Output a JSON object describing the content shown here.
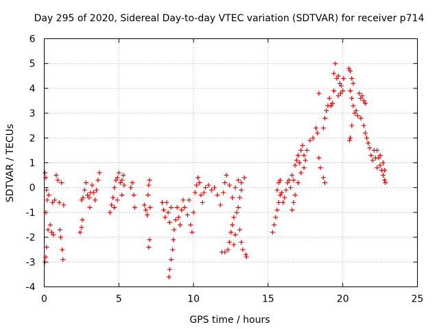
{
  "chart_data": {
    "type": "scatter",
    "title": "Day 295 of 2020, Sidereal Day-to-day VTEC variation (SDTVAR) for receiver p714",
    "xlabel": "GPS time / hours",
    "ylabel": "SDTVAR / TECUs",
    "xlim": [
      0,
      25
    ],
    "ylim": [
      -4,
      6
    ],
    "xticks": [
      "0",
      "5",
      "10",
      "15",
      "20",
      "25"
    ],
    "yticks": [
      "-4",
      "-3",
      "-2",
      "-1",
      "0",
      "1",
      "2",
      "3",
      "4",
      "5",
      "6"
    ],
    "grid": true,
    "marker": "plus",
    "color": "#ff0000",
    "series": [
      {
        "name": "SDTVAR",
        "points": [
          [
            0.05,
            0.6
          ],
          [
            0.1,
            0.4
          ],
          [
            0.15,
            -0.1
          ],
          [
            0.2,
            -0.5
          ],
          [
            0.1,
            -1.0
          ],
          [
            0.15,
            -2.4
          ],
          [
            0.05,
            -3.0
          ],
          [
            0.1,
            -2.8
          ],
          [
            0.25,
            -1.7
          ],
          [
            0.3,
            -0.3
          ],
          [
            0.4,
            -1.5
          ],
          [
            0.5,
            -1.8
          ],
          [
            0.6,
            -1.9
          ],
          [
            0.55,
            -0.6
          ],
          [
            0.7,
            -0.5
          ],
          [
            0.8,
            0.5
          ],
          [
            0.9,
            0.3
          ],
          [
            1.0,
            -0.6
          ],
          [
            1.05,
            -1.7
          ],
          [
            1.1,
            -2.0
          ],
          [
            1.2,
            -2.5
          ],
          [
            1.25,
            -2.9
          ],
          [
            1.15,
            0.2
          ],
          [
            1.3,
            -0.7
          ],
          [
            2.4,
            -1.8
          ],
          [
            2.5,
            -1.6
          ],
          [
            2.55,
            -1.3
          ],
          [
            2.5,
            -0.5
          ],
          [
            2.6,
            -0.4
          ],
          [
            2.7,
            -0.1
          ],
          [
            2.8,
            0.2
          ],
          [
            2.9,
            -0.3
          ],
          [
            3.0,
            -0.4
          ],
          [
            3.05,
            -0.8
          ],
          [
            3.1,
            -0.2
          ],
          [
            3.2,
            0.1
          ],
          [
            3.3,
            -0.2
          ],
          [
            3.4,
            -0.5
          ],
          [
            3.5,
            -0.1
          ],
          [
            3.6,
            0.3
          ],
          [
            3.7,
            0.6
          ],
          [
            4.4,
            -1.0
          ],
          [
            4.5,
            -0.7
          ],
          [
            4.6,
            -0.4
          ],
          [
            4.7,
            0.0
          ],
          [
            4.8,
            0.3
          ],
          [
            4.9,
            0.4
          ],
          [
            5.0,
            0.6
          ],
          [
            5.1,
            0.2
          ],
          [
            5.2,
            0.3
          ],
          [
            5.3,
            0.5
          ],
          [
            5.35,
            0.1
          ],
          [
            5.2,
            -0.3
          ],
          [
            4.9,
            -0.5
          ],
          [
            4.7,
            -0.8
          ],
          [
            5.8,
            0.0
          ],
          [
            5.9,
            0.2
          ],
          [
            6.0,
            -0.3
          ],
          [
            6.05,
            -0.8
          ],
          [
            6.7,
            -0.7
          ],
          [
            6.8,
            -0.9
          ],
          [
            6.9,
            -1.1
          ],
          [
            6.95,
            -0.3
          ],
          [
            7.0,
            0.1
          ],
          [
            7.05,
            0.3
          ],
          [
            7.1,
            -0.8
          ],
          [
            7.0,
            -2.4
          ],
          [
            7.05,
            -2.1
          ],
          [
            7.9,
            -0.6
          ],
          [
            8.0,
            -0.9
          ],
          [
            8.1,
            -1.2
          ],
          [
            8.2,
            -0.6
          ],
          [
            8.3,
            -1.0
          ],
          [
            8.4,
            -1.4
          ],
          [
            8.5,
            -0.8
          ],
          [
            8.35,
            -3.6
          ],
          [
            8.4,
            -3.3
          ],
          [
            8.5,
            -2.9
          ],
          [
            8.6,
            -2.5
          ],
          [
            8.65,
            -2.1
          ],
          [
            8.7,
            -1.7
          ],
          [
            8.8,
            -1.3
          ],
          [
            8.9,
            -0.8
          ],
          [
            9.0,
            -1.2
          ],
          [
            9.1,
            -1.5
          ],
          [
            9.2,
            -0.9
          ],
          [
            9.3,
            -0.5
          ],
          [
            9.4,
            -0.8
          ],
          [
            9.6,
            -1.1
          ],
          [
            9.7,
            -0.5
          ],
          [
            9.8,
            -1.5
          ],
          [
            9.9,
            -1.8
          ],
          [
            10.0,
            -1.0
          ],
          [
            10.1,
            -0.2
          ],
          [
            10.2,
            0.1
          ],
          [
            10.3,
            0.4
          ],
          [
            10.4,
            0.2
          ],
          [
            10.5,
            -0.3
          ],
          [
            10.6,
            -0.6
          ],
          [
            10.7,
            -0.2
          ],
          [
            10.8,
            0.0
          ],
          [
            11.0,
            0.1
          ],
          [
            11.2,
            -0.1
          ],
          [
            11.4,
            0.0
          ],
          [
            11.6,
            -0.3
          ],
          [
            11.8,
            -0.7
          ],
          [
            12.0,
            -0.2
          ],
          [
            12.1,
            0.2
          ],
          [
            12.2,
            0.5
          ],
          [
            12.4,
            0.1
          ],
          [
            12.6,
            -0.4
          ],
          [
            12.8,
            0.0
          ],
          [
            13.0,
            0.3
          ],
          [
            13.2,
            0.2
          ],
          [
            13.4,
            0.4
          ],
          [
            11.9,
            -2.6
          ],
          [
            12.1,
            -2.6
          ],
          [
            12.3,
            -2.5
          ],
          [
            12.4,
            -2.2
          ],
          [
            12.5,
            -1.8
          ],
          [
            12.6,
            -1.5
          ],
          [
            12.7,
            -1.2
          ],
          [
            12.9,
            -1.0
          ],
          [
            13.0,
            -0.8
          ],
          [
            13.1,
            -0.4
          ],
          [
            13.2,
            -0.1
          ],
          [
            12.8,
            -1.9
          ],
          [
            12.7,
            -2.3
          ],
          [
            13.1,
            -1.7
          ],
          [
            13.2,
            -2.2
          ],
          [
            13.3,
            -2.5
          ],
          [
            13.5,
            -2.7
          ],
          [
            13.55,
            -2.8
          ],
          [
            15.3,
            -1.8
          ],
          [
            15.4,
            -1.5
          ],
          [
            15.5,
            -1.2
          ],
          [
            15.6,
            -0.9
          ],
          [
            15.7,
            -0.6
          ],
          [
            15.8,
            -0.3
          ],
          [
            15.6,
            -0.1
          ],
          [
            15.7,
            0.2
          ],
          [
            15.8,
            0.3
          ],
          [
            15.9,
            -0.2
          ],
          [
            16.0,
            -0.6
          ],
          [
            16.1,
            -0.4
          ],
          [
            16.2,
            -0.1
          ],
          [
            16.3,
            0.2
          ],
          [
            16.4,
            0.3
          ],
          [
            16.5,
            0.0
          ],
          [
            16.6,
            0.5
          ],
          [
            16.7,
            0.3
          ],
          [
            16.8,
            0.9
          ],
          [
            16.9,
            1.1
          ],
          [
            17.0,
            1.3
          ],
          [
            17.1,
            1.0
          ],
          [
            17.2,
            1.5
          ],
          [
            17.3,
            1.7
          ],
          [
            17.4,
            1.3
          ],
          [
            17.5,
            1.1
          ],
          [
            16.6,
            -0.9
          ],
          [
            16.7,
            -0.6
          ],
          [
            16.8,
            -0.3
          ],
          [
            17.0,
            0.2
          ],
          [
            17.2,
            0.6
          ],
          [
            17.4,
            0.8
          ],
          [
            17.6,
            1.5
          ],
          [
            17.8,
            1.9
          ],
          [
            18.0,
            2.0
          ],
          [
            18.2,
            2.4
          ],
          [
            18.3,
            2.2
          ],
          [
            18.4,
            3.8
          ],
          [
            18.5,
            0.8
          ],
          [
            18.4,
            1.2
          ],
          [
            18.7,
            0.4
          ],
          [
            18.8,
            0.2
          ],
          [
            18.7,
            2.4
          ],
          [
            18.8,
            2.8
          ],
          [
            18.9,
            3.1
          ],
          [
            19.0,
            3.3
          ],
          [
            19.1,
            3.6
          ],
          [
            19.2,
            3.3
          ],
          [
            19.3,
            3.4
          ],
          [
            19.4,
            3.9
          ],
          [
            19.4,
            4.6
          ],
          [
            19.5,
            5.0
          ],
          [
            19.6,
            4.4
          ],
          [
            19.7,
            4.5
          ],
          [
            19.8,
            4.2
          ],
          [
            19.9,
            4.1
          ],
          [
            20.0,
            3.9
          ],
          [
            19.7,
            3.7
          ],
          [
            19.85,
            3.8
          ],
          [
            20.05,
            4.4
          ],
          [
            20.4,
            4.8
          ],
          [
            20.5,
            4.7
          ],
          [
            20.6,
            4.4
          ],
          [
            20.7,
            4.2
          ],
          [
            20.5,
            3.9
          ],
          [
            20.6,
            3.6
          ],
          [
            20.7,
            3.3
          ],
          [
            20.8,
            3.0
          ],
          [
            20.9,
            3.1
          ],
          [
            21.0,
            2.9
          ],
          [
            20.6,
            2.5
          ],
          [
            20.5,
            2.0
          ],
          [
            20.45,
            1.9
          ],
          [
            21.1,
            3.8
          ],
          [
            21.2,
            3.6
          ],
          [
            21.3,
            3.7
          ],
          [
            21.4,
            3.5
          ],
          [
            21.5,
            3.4
          ],
          [
            21.2,
            2.8
          ],
          [
            21.4,
            2.5
          ],
          [
            21.5,
            2.2
          ],
          [
            21.6,
            2.0
          ],
          [
            21.7,
            1.8
          ],
          [
            21.8,
            1.6
          ],
          [
            21.9,
            1.3
          ],
          [
            22.0,
            1.1
          ],
          [
            22.1,
            1.5
          ],
          [
            22.2,
            1.2
          ],
          [
            22.3,
            1.5
          ],
          [
            22.4,
            1.2
          ],
          [
            22.5,
            0.9
          ],
          [
            22.6,
            0.7
          ],
          [
            22.7,
            0.5
          ],
          [
            22.8,
            0.3
          ],
          [
            22.85,
            0.2
          ],
          [
            22.3,
            0.8
          ],
          [
            22.5,
            1.3
          ],
          [
            22.7,
            1.0
          ],
          [
            22.8,
            0.7
          ]
        ]
      }
    ]
  }
}
